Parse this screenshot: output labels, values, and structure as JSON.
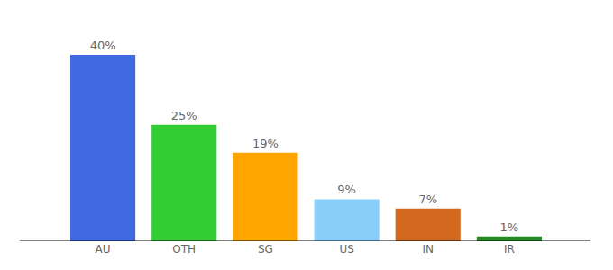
{
  "chart_data": {
    "type": "bar",
    "categories": [
      "AU",
      "OTH",
      "SG",
      "US",
      "IN",
      "IR"
    ],
    "values": [
      40,
      25,
      19,
      9,
      7,
      1
    ],
    "value_labels": [
      "40%",
      "25%",
      "19%",
      "9%",
      "7%",
      "1%"
    ],
    "colors": [
      "#4169e1",
      "#32cd32",
      "#ffa500",
      "#87cefa",
      "#d2691e",
      "#228b22"
    ],
    "ylim": [
      0,
      40
    ],
    "data_labels": true,
    "tick_labels": "x",
    "grid": false
  }
}
